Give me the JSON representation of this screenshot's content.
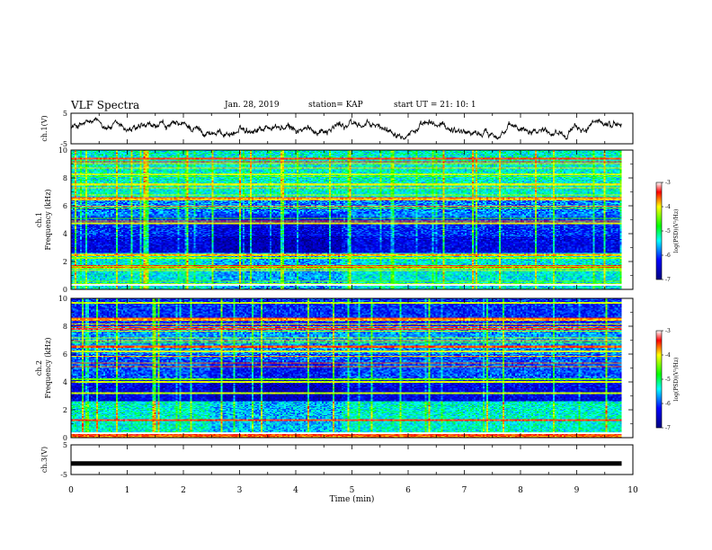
{
  "header": {
    "title": "VLF Spectra",
    "date": "Jan. 28, 2019",
    "station": "station= KAP",
    "start": "start UT =  21: 10: 1"
  },
  "chart_data": [
    {
      "type": "line",
      "id": "ch1-voltage",
      "ylabel": "ch.1(V)",
      "ylim": [
        -5,
        5
      ],
      "yticks": [
        "5",
        "-5"
      ],
      "xlim": [
        0,
        10
      ],
      "series": [
        {
          "mean": 0,
          "amplitude": 2.5,
          "x_end": 9.8
        }
      ]
    },
    {
      "type": "heatmap",
      "id": "ch1-spectrogram",
      "ylabel": "ch.1\nFrequency (kHz)",
      "ylim": [
        0,
        10
      ],
      "yticks": [
        "0",
        "2",
        "4",
        "6",
        "8",
        "10"
      ],
      "xlim": [
        0,
        10
      ],
      "colorbar": {
        "label": "log(PSD)(V²/Hz)",
        "range": [
          -7,
          -3
        ],
        "ticks": [
          "-3",
          "-4",
          "-5",
          "-6",
          "-7"
        ]
      }
    },
    {
      "type": "heatmap",
      "id": "ch2-spectrogram",
      "ylabel": "ch.2\nFrequency (kHz)",
      "ylim": [
        0,
        10
      ],
      "yticks": [
        "0",
        "2",
        "4",
        "6",
        "8",
        "10"
      ],
      "xlim": [
        0,
        10
      ],
      "colorbar": {
        "label": "log(PSD)(V²/Hz)",
        "range": [
          -7,
          -3
        ],
        "ticks": [
          "-3",
          "-4",
          "-5",
          "-6",
          "-7"
        ]
      }
    },
    {
      "type": "line",
      "id": "ch3-voltage",
      "ylabel": "ch.3(V)",
      "ylim": [
        -5,
        5
      ],
      "yticks": [
        "5",
        "-5"
      ],
      "xlim": [
        0,
        10
      ],
      "series": [
        {
          "constant": -1.3,
          "x_end": 9.8
        }
      ]
    }
  ],
  "xaxis": {
    "label": "Time (min)",
    "ticks": [
      "0",
      "1",
      "2",
      "3",
      "4",
      "5",
      "6",
      "7",
      "8",
      "9",
      "10"
    ]
  }
}
